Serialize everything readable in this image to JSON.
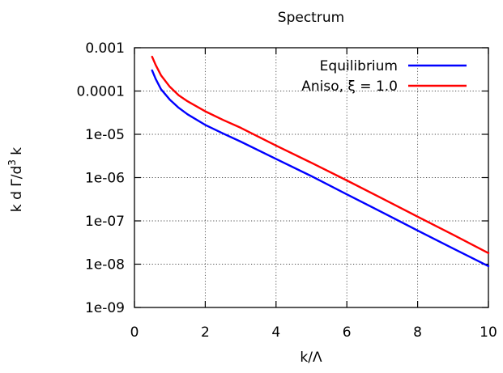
{
  "chart_data": {
    "type": "line",
    "title": "Spectrum",
    "xlabel": "k/Λ",
    "ylabel": {
      "main": "k d Γ/d",
      "superscript": "3",
      "tail": " k"
    },
    "xlim": [
      0,
      10
    ],
    "ylim": [
      1e-09,
      0.001
    ],
    "yscale": "log",
    "grid": true,
    "legend_position": "top-right",
    "x_ticks": [
      "0",
      "2",
      "4",
      "6",
      "8",
      "10"
    ],
    "y_ticks": [
      "1e-09",
      "1e-08",
      "1e-07",
      "1e-06",
      "1e-05",
      "0.0001",
      "0.001"
    ],
    "series": [
      {
        "name": "Equilibrium",
        "color": "#0000ff",
        "x": [
          0.5,
          0.6,
          0.75,
          1.0,
          1.25,
          1.5,
          2.0,
          2.5,
          3.0,
          4.0,
          5.0,
          6.0,
          7.0,
          8.0,
          9.0,
          10.0
        ],
        "y": [
          0.0003,
          0.00019,
          0.00011,
          6.3e-05,
          4.1e-05,
          2.9e-05,
          1.65e-05,
          1.05e-05,
          6.8e-06,
          2.7e-06,
          1.08e-06,
          4.1e-07,
          1.58e-07,
          6e-08,
          2.3e-08,
          9e-09
        ]
      },
      {
        "name": "Aniso, ξ = 1.0",
        "color": "#ff0000",
        "x": [
          0.5,
          0.6,
          0.75,
          1.0,
          1.25,
          1.5,
          2.0,
          2.5,
          3.0,
          4.0,
          5.0,
          6.0,
          7.0,
          8.0,
          9.0,
          10.0
        ],
        "y": [
          0.00062,
          0.0004,
          0.00023,
          0.000125,
          8e-05,
          5.8e-05,
          3.4e-05,
          2.15e-05,
          1.42e-05,
          5.5e-06,
          2.2e-06,
          8.6e-07,
          3.3e-07,
          1.25e-07,
          4.8e-08,
          1.8e-08
        ]
      }
    ]
  }
}
